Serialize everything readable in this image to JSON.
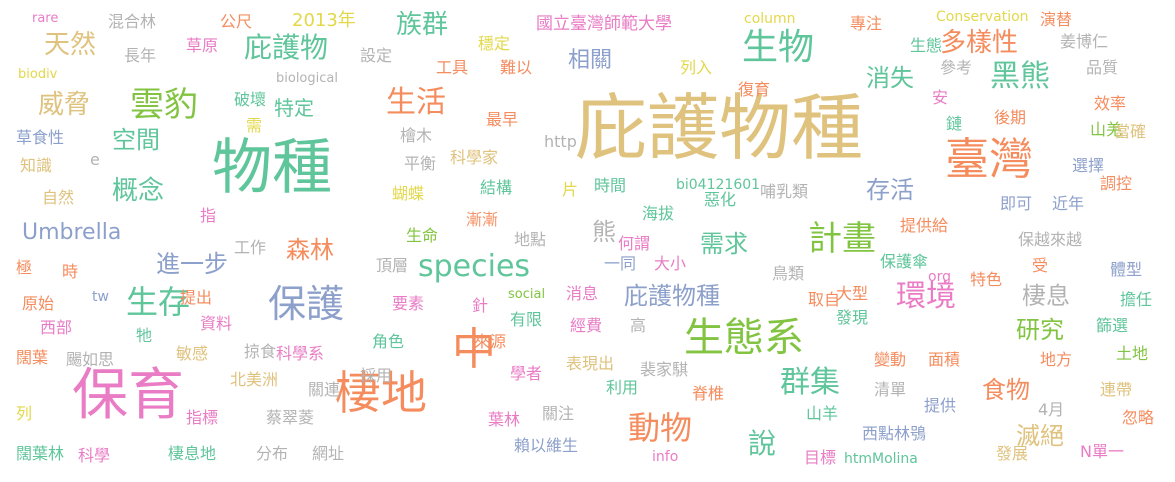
{
  "palette": {
    "tan": "#dfc27d",
    "orange": "#f58c5e",
    "pink": "#e97cc5",
    "green": "#82c441",
    "teal": "#5fc59a",
    "blue": "#8da0cb",
    "gray": "#b3b3b3",
    "yellow": "#e3d84a"
  },
  "words": [
    {
      "text": "庇護物種",
      "size": 72,
      "color": "tan"
    },
    {
      "text": "物種",
      "size": 60,
      "color": "teal"
    },
    {
      "text": "保育",
      "size": 56,
      "color": "pink"
    },
    {
      "text": "臺灣",
      "size": 44,
      "color": "orange"
    },
    {
      "text": "中",
      "size": 44,
      "color": "orange"
    },
    {
      "text": "棲地",
      "size": 46,
      "color": "orange"
    },
    {
      "text": "生態系",
      "size": 40,
      "color": "green"
    },
    {
      "text": "保護",
      "size": 38,
      "color": "blue"
    },
    {
      "text": "生物",
      "size": 36,
      "color": "teal"
    },
    {
      "text": "雲豹",
      "size": 34,
      "color": "green"
    },
    {
      "text": "環境",
      "size": 30,
      "color": "pink"
    },
    {
      "text": "計畫",
      "size": 34,
      "color": "green"
    },
    {
      "text": "species",
      "size": 30,
      "color": "teal"
    },
    {
      "text": "生存",
      "size": 32,
      "color": "teal"
    },
    {
      "text": "動物",
      "size": 32,
      "color": "orange"
    },
    {
      "text": "群集",
      "size": 30,
      "color": "teal"
    },
    {
      "text": "黑熊",
      "size": 30,
      "color": "teal"
    },
    {
      "text": "生活",
      "size": 30,
      "color": "orange"
    },
    {
      "text": "庇護物",
      "size": 28,
      "color": "teal"
    },
    {
      "text": "威脅",
      "size": 26,
      "color": "tan"
    },
    {
      "text": "天然",
      "size": 26,
      "color": "tan"
    },
    {
      "text": "概念",
      "size": 26,
      "color": "teal"
    },
    {
      "text": "空間",
      "size": 24,
      "color": "teal"
    },
    {
      "text": "森林",
      "size": 24,
      "color": "orange"
    },
    {
      "text": "需求",
      "size": 24,
      "color": "teal"
    },
    {
      "text": "說",
      "size": 28,
      "color": "teal"
    },
    {
      "text": "族群",
      "size": 26,
      "color": "teal"
    },
    {
      "text": "多樣性",
      "size": 26,
      "color": "orange"
    },
    {
      "text": "消失",
      "size": 24,
      "color": "teal"
    },
    {
      "text": "存活",
      "size": 24,
      "color": "blue"
    },
    {
      "text": "棲息",
      "size": 24,
      "color": "gray"
    },
    {
      "text": "研究",
      "size": 24,
      "color": "green"
    },
    {
      "text": "食物",
      "size": 24,
      "color": "orange"
    },
    {
      "text": "滅絕",
      "size": 24,
      "color": "tan"
    },
    {
      "text": "Umbrella",
      "size": 22,
      "color": "blue"
    },
    {
      "text": "進一步",
      "size": 24,
      "color": "blue"
    },
    {
      "text": "庇護物種",
      "size": 24,
      "color": "blue"
    },
    {
      "text": "相關",
      "size": 22,
      "color": "blue"
    },
    {
      "text": "特定",
      "size": 20,
      "color": "teal"
    },
    {
      "text": "熊",
      "size": 24,
      "color": "gray"
    },
    {
      "text": "rare",
      "size": 13,
      "color": "pink"
    },
    {
      "text": "混合林",
      "size": 16,
      "color": "gray"
    },
    {
      "text": "長年",
      "size": 16,
      "color": "gray"
    },
    {
      "text": "biodiv",
      "size": 13,
      "color": "yellow"
    },
    {
      "text": "公尺",
      "size": 16,
      "color": "orange"
    },
    {
      "text": "草原",
      "size": 16,
      "color": "pink"
    },
    {
      "text": "2013年",
      "size": 18,
      "color": "yellow"
    },
    {
      "text": "設定",
      "size": 16,
      "color": "gray"
    },
    {
      "text": "biological",
      "size": 13,
      "color": "gray"
    },
    {
      "text": "穩定",
      "size": 16,
      "color": "yellow"
    },
    {
      "text": "工具",
      "size": 16,
      "color": "orange"
    },
    {
      "text": "難以",
      "size": 16,
      "color": "orange"
    },
    {
      "text": "國立臺灣師範大學",
      "size": 17,
      "color": "pink"
    },
    {
      "text": "column",
      "size": 14,
      "color": "yellow"
    },
    {
      "text": "專注",
      "size": 16,
      "color": "orange"
    },
    {
      "text": "Conservation",
      "size": 14,
      "color": "yellow"
    },
    {
      "text": "演替",
      "size": 16,
      "color": "orange"
    },
    {
      "text": "姜博仁",
      "size": 16,
      "color": "gray"
    },
    {
      "text": "生態",
      "size": 16,
      "color": "teal"
    },
    {
      "text": "參考",
      "size": 16,
      "color": "gray"
    },
    {
      "text": "品質",
      "size": 16,
      "color": "gray"
    },
    {
      "text": "列入",
      "size": 16,
      "color": "yellow"
    },
    {
      "text": "復育",
      "size": 16,
      "color": "orange"
    },
    {
      "text": "效率",
      "size": 16,
      "color": "orange"
    },
    {
      "text": "安",
      "size": 16,
      "color": "pink"
    },
    {
      "text": "後期",
      "size": 16,
      "color": "orange"
    },
    {
      "text": "山羌",
      "size": 16,
      "color": "green"
    },
    {
      "text": "鏈",
      "size": 16,
      "color": "teal"
    },
    {
      "text": "當確",
      "size": 16,
      "color": "tan"
    },
    {
      "text": "破壞",
      "size": 16,
      "color": "teal"
    },
    {
      "text": "需",
      "size": 16,
      "color": "yellow"
    },
    {
      "text": "最早",
      "size": 16,
      "color": "orange"
    },
    {
      "text": "檜木",
      "size": 16,
      "color": "gray"
    },
    {
      "text": "http",
      "size": 16,
      "color": "gray"
    },
    {
      "text": "草食性",
      "size": 16,
      "color": "blue"
    },
    {
      "text": "知識",
      "size": 16,
      "color": "tan"
    },
    {
      "text": "e",
      "size": 16,
      "color": "gray"
    },
    {
      "text": "平衡",
      "size": 16,
      "color": "gray"
    },
    {
      "text": "科學家",
      "size": 16,
      "color": "tan"
    },
    {
      "text": "選擇",
      "size": 16,
      "color": "blue"
    },
    {
      "text": "蝴蝶",
      "size": 16,
      "color": "yellow"
    },
    {
      "text": "結構",
      "size": 16,
      "color": "teal"
    },
    {
      "text": "片",
      "size": 16,
      "color": "yellow"
    },
    {
      "text": "時間",
      "size": 16,
      "color": "teal"
    },
    {
      "text": "bi04121601",
      "size": 14,
      "color": "teal"
    },
    {
      "text": "哺乳類",
      "size": 16,
      "color": "gray"
    },
    {
      "text": "即可",
      "size": 16,
      "color": "blue"
    },
    {
      "text": "近年",
      "size": 16,
      "color": "blue"
    },
    {
      "text": "調控",
      "size": 16,
      "color": "orange"
    },
    {
      "text": "自然",
      "size": 16,
      "color": "tan"
    },
    {
      "text": "指",
      "size": 16,
      "color": "pink"
    },
    {
      "text": "漸漸",
      "size": 16,
      "color": "orange"
    },
    {
      "text": "海拔",
      "size": 16,
      "color": "teal"
    },
    {
      "text": "惡化",
      "size": 16,
      "color": "teal"
    },
    {
      "text": "提供給",
      "size": 16,
      "color": "orange"
    },
    {
      "text": "工作",
      "size": 16,
      "color": "gray"
    },
    {
      "text": "生命",
      "size": 16,
      "color": "green"
    },
    {
      "text": "地點",
      "size": 16,
      "color": "gray"
    },
    {
      "text": "何謂",
      "size": 16,
      "color": "pink"
    },
    {
      "text": "保越來越",
      "size": 16,
      "color": "gray"
    },
    {
      "text": "極",
      "size": 16,
      "color": "orange"
    },
    {
      "text": "時",
      "size": 16,
      "color": "orange"
    },
    {
      "text": "頂層",
      "size": 16,
      "color": "gray"
    },
    {
      "text": "一同",
      "size": 16,
      "color": "blue"
    },
    {
      "text": "大小",
      "size": 16,
      "color": "pink"
    },
    {
      "text": "鳥類",
      "size": 16,
      "color": "gray"
    },
    {
      "text": "保護傘",
      "size": 16,
      "color": "teal"
    },
    {
      "text": "受",
      "size": 16,
      "color": "orange"
    },
    {
      "text": "體型",
      "size": 16,
      "color": "blue"
    },
    {
      "text": "原始",
      "size": 16,
      "color": "orange"
    },
    {
      "text": "tw",
      "size": 14,
      "color": "blue"
    },
    {
      "text": "提出",
      "size": 16,
      "color": "orange"
    },
    {
      "text": "social",
      "size": 13,
      "color": "green"
    },
    {
      "text": "消息",
      "size": 16,
      "color": "pink"
    },
    {
      "text": "取自",
      "size": 16,
      "color": "orange"
    },
    {
      "text": "org",
      "size": 14,
      "color": "pink"
    },
    {
      "text": "特色",
      "size": 16,
      "color": "orange"
    },
    {
      "text": "擔任",
      "size": 16,
      "color": "teal"
    },
    {
      "text": "西部",
      "size": 16,
      "color": "pink"
    },
    {
      "text": "資料",
      "size": 16,
      "color": "pink"
    },
    {
      "text": "要素",
      "size": 16,
      "color": "pink"
    },
    {
      "text": "針",
      "size": 16,
      "color": "pink"
    },
    {
      "text": "有限",
      "size": 16,
      "color": "teal"
    },
    {
      "text": "大型",
      "size": 16,
      "color": "orange"
    },
    {
      "text": "篩選",
      "size": 16,
      "color": "teal"
    },
    {
      "text": "牠",
      "size": 16,
      "color": "teal"
    },
    {
      "text": "經費",
      "size": 16,
      "color": "pink"
    },
    {
      "text": "高",
      "size": 16,
      "color": "gray"
    },
    {
      "text": "發現",
      "size": 16,
      "color": "teal"
    },
    {
      "text": "土地",
      "size": 16,
      "color": "green"
    },
    {
      "text": "闊葉",
      "size": 16,
      "color": "orange"
    },
    {
      "text": "敏感",
      "size": 16,
      "color": "tan"
    },
    {
      "text": "掠食",
      "size": 16,
      "color": "gray"
    },
    {
      "text": "科學系",
      "size": 16,
      "color": "pink"
    },
    {
      "text": "角色",
      "size": 16,
      "color": "teal"
    },
    {
      "text": "來源",
      "size": 16,
      "color": "orange"
    },
    {
      "text": "地方",
      "size": 16,
      "color": "orange"
    },
    {
      "text": "颺如思",
      "size": 16,
      "color": "gray"
    },
    {
      "text": "變動",
      "size": 16,
      "color": "orange"
    },
    {
      "text": "面積",
      "size": 16,
      "color": "orange"
    },
    {
      "text": "北美洲",
      "size": 16,
      "color": "tan"
    },
    {
      "text": "關連",
      "size": 16,
      "color": "gray"
    },
    {
      "text": "採用",
      "size": 16,
      "color": "gray"
    },
    {
      "text": "學者",
      "size": 16,
      "color": "pink"
    },
    {
      "text": "表現出",
      "size": 16,
      "color": "tan"
    },
    {
      "text": "裴家騏",
      "size": 16,
      "color": "gray"
    },
    {
      "text": "清單",
      "size": 16,
      "color": "gray"
    },
    {
      "text": "連帶",
      "size": 16,
      "color": "tan"
    },
    {
      "text": "利用",
      "size": 16,
      "color": "teal"
    },
    {
      "text": "列",
      "size": 16,
      "color": "yellow"
    },
    {
      "text": "指標",
      "size": 16,
      "color": "pink"
    },
    {
      "text": "蔡翠菱",
      "size": 16,
      "color": "gray"
    },
    {
      "text": "脊椎",
      "size": 16,
      "color": "orange"
    },
    {
      "text": "提供",
      "size": 16,
      "color": "blue"
    },
    {
      "text": "關注",
      "size": 16,
      "color": "gray"
    },
    {
      "text": "山羊",
      "size": 16,
      "color": "teal"
    },
    {
      "text": "4月",
      "size": 16,
      "color": "gray"
    },
    {
      "text": "忽略",
      "size": 16,
      "color": "orange"
    },
    {
      "text": "葉林",
      "size": 16,
      "color": "pink"
    },
    {
      "text": "西點林鴞",
      "size": 16,
      "color": "blue"
    },
    {
      "text": "闊葉林",
      "size": 16,
      "color": "teal"
    },
    {
      "text": "科學",
      "size": 16,
      "color": "pink"
    },
    {
      "text": "棲息地",
      "size": 16,
      "color": "teal"
    },
    {
      "text": "分布",
      "size": 16,
      "color": "gray"
    },
    {
      "text": "網址",
      "size": 16,
      "color": "gray"
    },
    {
      "text": "賴以維生",
      "size": 16,
      "color": "blue"
    },
    {
      "text": "info",
      "size": 14,
      "color": "pink"
    },
    {
      "text": "目標",
      "size": 16,
      "color": "pink"
    },
    {
      "text": "htmMolina",
      "size": 14,
      "color": "teal"
    },
    {
      "text": "發展",
      "size": 16,
      "color": "tan"
    },
    {
      "text": "N單一",
      "size": 16,
      "color": "pink"
    }
  ]
}
